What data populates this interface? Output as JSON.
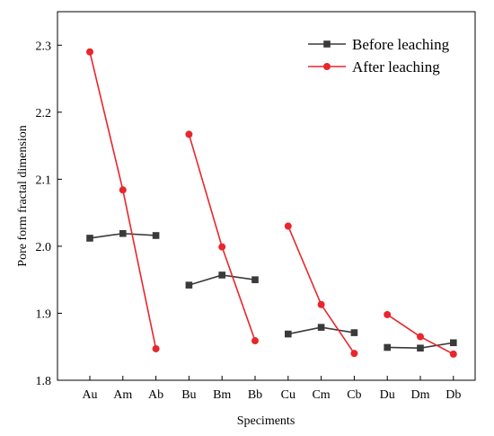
{
  "chart_data": {
    "type": "line",
    "xlabel": "Speciments",
    "ylabel": "Pore form fractal dimension",
    "ylim": [
      1.8,
      2.35
    ],
    "yticks": [
      1.8,
      1.9,
      2.0,
      2.1,
      2.2,
      2.3
    ],
    "ytick_labels": [
      "1.8",
      "1.9",
      "2.0",
      "2.1",
      "2.2",
      "2.3"
    ],
    "categories": [
      "Au",
      "Am",
      "Ab",
      "Bu",
      "Bm",
      "Bb",
      "Cu",
      "Cm",
      "Cb",
      "Du",
      "Dm",
      "Db"
    ],
    "groups": [
      [
        0,
        1,
        2
      ],
      [
        3,
        4,
        5
      ],
      [
        6,
        7,
        8
      ],
      [
        9,
        10,
        11
      ]
    ],
    "legend_position": "top-right",
    "grid": false,
    "series": [
      {
        "name": "Before leaching",
        "marker": "square",
        "color": "#3a3a3a",
        "values": [
          2.012,
          2.019,
          2.016,
          1.942,
          1.957,
          1.95,
          1.869,
          1.879,
          1.871,
          1.849,
          1.848,
          1.856
        ]
      },
      {
        "name": "After leaching",
        "marker": "circle",
        "color": "#e8262c",
        "values": [
          2.29,
          2.084,
          1.847,
          2.167,
          1.999,
          1.859,
          2.03,
          1.913,
          1.84,
          1.898,
          1.865,
          1.839
        ]
      }
    ]
  }
}
